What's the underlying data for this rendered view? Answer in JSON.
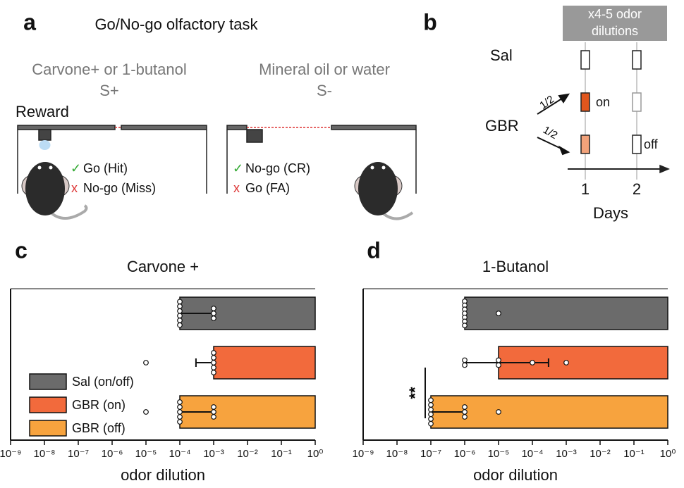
{
  "panel_a": {
    "letter": "a",
    "title": "Go/No-go olfactory task",
    "left": {
      "stimulus": "Carvone+ or 1-butanol",
      "label": "S+",
      "reward": "Reward",
      "correct": "Go (Hit)",
      "wrong": "No-go (Miss)"
    },
    "right": {
      "stimulus": "Mineral oil or water",
      "label": "S-",
      "correct": "No-go (CR)",
      "wrong": "Go (FA)"
    },
    "check": "✓",
    "cross": "x"
  },
  "panel_b": {
    "letter": "b",
    "box_text": [
      "x4-5 odor",
      "dilutions"
    ],
    "groups": [
      "Sal",
      "GBR"
    ],
    "split": [
      "1/2",
      "1/2"
    ],
    "conditions": [
      "on",
      "off"
    ],
    "days": [
      "1",
      "2"
    ],
    "xlabel": "Days"
  },
  "chart_data": [
    {
      "type": "bar",
      "orientation": "horizontal",
      "panel_label": "c",
      "title": "Carvone +",
      "xlabel": "odor dilution",
      "xscale": "log",
      "xlim": [
        1e-09,
        1
      ],
      "xticks": [
        {
          "value": 1e-09,
          "label": "10⁻⁹"
        },
        {
          "value": 1e-08,
          "label": "10⁻⁸"
        },
        {
          "value": 1e-07,
          "label": "10⁻⁷"
        },
        {
          "value": 1e-06,
          "label": "10⁻⁶"
        },
        {
          "value": 1e-05,
          "label": "10⁻⁵"
        },
        {
          "value": 0.0001,
          "label": "10⁻⁴"
        },
        {
          "value": 0.001,
          "label": "10⁻³"
        },
        {
          "value": 0.01,
          "label": "10⁻²"
        },
        {
          "value": 0.1,
          "label": "10⁻¹"
        },
        {
          "value": 1,
          "label": "10⁰"
        }
      ],
      "legend": "lower left",
      "series": [
        {
          "name": "Sal (on/off)",
          "color": "#6b6b6b",
          "value": 0.0001,
          "error": [
            0.0001,
            0.001
          ],
          "points": [
            0.0001,
            0.0001,
            0.0001,
            0.0001,
            0.0001,
            0.0001,
            0.001,
            0.001,
            0.001
          ]
        },
        {
          "name": "GBR (on)",
          "color": "#f26a3c",
          "value": 0.001,
          "error": [
            0.0003,
            0.001
          ],
          "points": [
            1e-05,
            0.001,
            0.001,
            0.001,
            0.001,
            0.001
          ]
        },
        {
          "name": "GBR (off)",
          "color": "#f7a33e",
          "value": 0.0001,
          "error": [
            0.0001,
            0.001
          ],
          "points": [
            1e-05,
            0.0001,
            0.0001,
            0.0001,
            0.0001,
            0.0001,
            0.001,
            0.001,
            0.001
          ]
        }
      ]
    },
    {
      "type": "bar",
      "orientation": "horizontal",
      "panel_label": "d",
      "title": "1-Butanol",
      "xlabel": "odor dilution",
      "xscale": "log",
      "xlim": [
        1e-09,
        1
      ],
      "xticks": [
        {
          "value": 1e-09,
          "label": "10⁻⁹"
        },
        {
          "value": 1e-08,
          "label": "10⁻⁸"
        },
        {
          "value": 1e-07,
          "label": "10⁻⁷"
        },
        {
          "value": 1e-06,
          "label": "10⁻⁶"
        },
        {
          "value": 1e-05,
          "label": "10⁻⁵"
        },
        {
          "value": 0.0001,
          "label": "10⁻⁴"
        },
        {
          "value": 0.001,
          "label": "10⁻³"
        },
        {
          "value": 0.01,
          "label": "10⁻²"
        },
        {
          "value": 0.1,
          "label": "10⁻¹"
        },
        {
          "value": 1,
          "label": "10⁰"
        }
      ],
      "annotation": "**",
      "series": [
        {
          "color": "#6b6b6b",
          "value": 1e-06,
          "error": [
            1e-06,
            1e-06
          ],
          "points": [
            1e-06,
            1e-06,
            1e-06,
            1e-06,
            1e-06,
            1e-06,
            1e-06,
            1e-05
          ]
        },
        {
          "color": "#f26a3c",
          "value": 1e-05,
          "error": [
            1e-06,
            0.0003
          ],
          "points": [
            1e-06,
            1e-06,
            1e-05,
            1e-05,
            0.0001,
            0.001
          ]
        },
        {
          "color": "#f7a33e",
          "value": 1e-07,
          "error": [
            1e-07,
            1e-06
          ],
          "points": [
            1e-07,
            1e-07,
            1e-07,
            1e-07,
            1e-07,
            1e-07,
            1e-06,
            1e-06,
            1e-06,
            1e-05
          ]
        }
      ]
    }
  ]
}
